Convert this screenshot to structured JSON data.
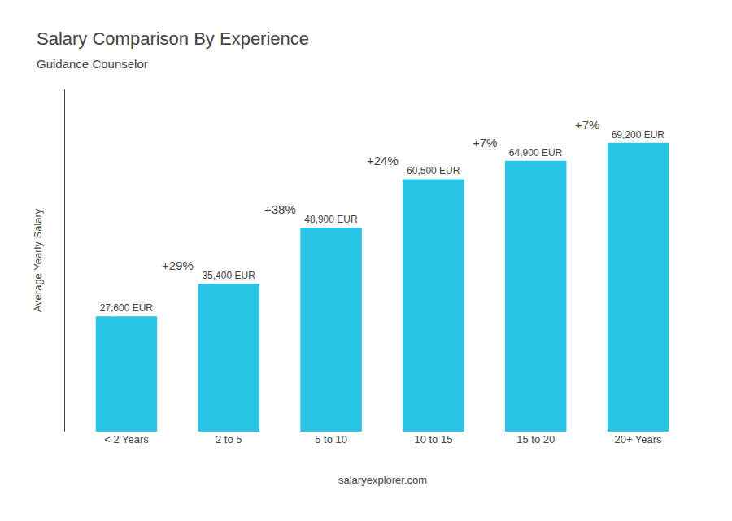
{
  "chart_data": {
    "type": "bar",
    "title": "Salary Comparison By Experience",
    "subtitle": "Guidance Counselor",
    "categories": [
      "< 2 Years",
      "2 to 5",
      "5 to 10",
      "10 to 15",
      "15 to 20",
      "20+ Years"
    ],
    "values": [
      27600,
      35400,
      48900,
      60500,
      64900,
      69200
    ],
    "value_labels": [
      "27,600 EUR",
      "35,400 EUR",
      "48,900 EUR",
      "60,500 EUR",
      "64,900 EUR",
      "69,200 EUR"
    ],
    "data_labels": true,
    "color": "#29C5E6",
    "ylabel": "Average Yearly Salary",
    "ylim": [
      0,
      82000
    ],
    "tick_labels": "x",
    "grid": false,
    "annotations": [
      {
        "text": "+29%",
        "between": [
          "< 2 Years",
          "2 to 5"
        ]
      },
      {
        "text": "+38%",
        "between": [
          "2 to 5",
          "5 to 10"
        ]
      },
      {
        "text": "+24%",
        "between": [
          "5 to 10",
          "10 to 15"
        ]
      },
      {
        "text": "+7%",
        "between": [
          "10 to 15",
          "15 to 20"
        ]
      },
      {
        "text": "+7%",
        "between": [
          "15 to 20",
          "20+ Years"
        ]
      }
    ],
    "footer": "salaryexplorer.com"
  }
}
